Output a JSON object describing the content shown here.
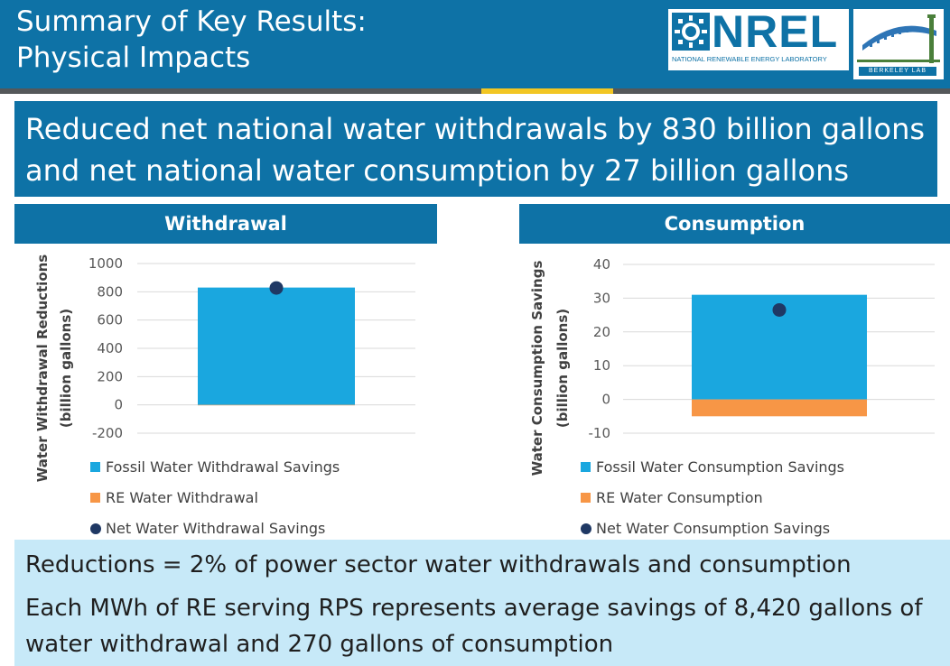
{
  "header": {
    "title": "Summary of Key Results:\nPhysical Impacts",
    "nrel_logo_text": "NREL",
    "nrel_logo_subtitle": "NATIONAL RENEWABLE ENERGY LABORATORY",
    "berkeley_logo_text": "BERKELEY LAB"
  },
  "headline": "Reduced net national water withdrawals by 830 billion gallons and net national water consumption by 27 billion gallons",
  "colors": {
    "fossil": "#1aa7df",
    "re": "#f79646",
    "net": "#1f3864",
    "accent": "#0e72a6",
    "highlight": "#f2c623"
  },
  "chart_data": [
    {
      "type": "bar",
      "panel_title": "Withdrawal",
      "ylabel": "Water Withdrawal Reductions",
      "ylabel_unit": "(billion gallons)",
      "ylim": [
        -200,
        1000
      ],
      "yticks": [
        "1000",
        "800",
        "600",
        "400",
        "200",
        "0",
        "-200"
      ],
      "ytick_values": [
        1000,
        800,
        600,
        400,
        200,
        0,
        -200
      ],
      "series": [
        {
          "name": "Fossil Water Withdrawal Savings",
          "kind": "bar",
          "value": 830
        },
        {
          "name": "RE Water Withdrawal",
          "kind": "bar",
          "value": -3
        },
        {
          "name": "Net Water Withdrawal Savings",
          "kind": "point",
          "value": 827
        }
      ],
      "legend": [
        "Fossil Water Withdrawal Savings",
        "RE Water Withdrawal",
        "Net Water Withdrawal Savings"
      ],
      "grid": true
    },
    {
      "type": "bar",
      "panel_title": "Consumption",
      "ylabel": "Water Consumption Savings",
      "ylabel_unit": "(billion gallons)",
      "ylim": [
        -10,
        40
      ],
      "yticks": [
        "40",
        "30",
        "20",
        "10",
        "0",
        "-10"
      ],
      "ytick_values": [
        40,
        30,
        20,
        10,
        0,
        -10
      ],
      "series": [
        {
          "name": "Fossil Water Consumption Savings",
          "kind": "bar",
          "value": 31
        },
        {
          "name": "RE Water Consumption",
          "kind": "bar",
          "value": -5
        },
        {
          "name": "Net Water Consumption Savings",
          "kind": "point",
          "value": 26.5
        }
      ],
      "legend": [
        "Fossil Water Consumption Savings",
        "RE Water Consumption",
        "Net Water Consumption Savings"
      ],
      "grid": true
    }
  ],
  "bottom": {
    "line1": "Reductions = 2% of power sector water withdrawals and consumption",
    "line2": "Each MWh of RE serving RPS represents average savings of 8,420 gallons of water withdrawal and 270 gallons of consumption"
  }
}
